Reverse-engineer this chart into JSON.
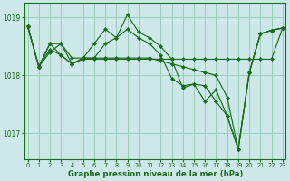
{
  "background_color": "#cce8e8",
  "grid_color": "#99ccbb",
  "line_color": "#1a6b1a",
  "marker_color": "#1a6b1a",
  "ylabel_ticks": [
    1017,
    1018,
    1019
  ],
  "xlabel_label": "Graphe pression niveau de la mer (hPa)",
  "xlabel_ticks": [
    0,
    1,
    2,
    3,
    4,
    5,
    6,
    7,
    8,
    9,
    10,
    11,
    12,
    13,
    14,
    15,
    16,
    17,
    18,
    19,
    20,
    21,
    22,
    23
  ],
  "xlim": [
    -0.3,
    23.3
  ],
  "ylim": [
    1016.55,
    1019.25
  ],
  "series": [
    [
      1018.85,
      1018.15,
      1018.4,
      1018.55,
      1018.2,
      1018.3,
      1018.55,
      1018.8,
      1018.65,
      1019.05,
      1018.75,
      1018.65,
      1018.5,
      1018.28,
      1017.78,
      1017.85,
      1017.82,
      1017.55,
      1017.3,
      1016.72,
      1018.05,
      1018.72,
      1018.78,
      1018.82
    ],
    [
      1018.85,
      1018.15,
      1018.55,
      1018.55,
      1018.3,
      1018.3,
      1018.3,
      1018.55,
      1018.65,
      1018.8,
      1018.65,
      1018.55,
      1018.35,
      1017.95,
      1017.82,
      1017.85,
      1017.55,
      1017.75,
      1017.3,
      1016.72,
      1018.05,
      1018.72,
      1018.78,
      1018.82
    ],
    [
      1018.85,
      1018.15,
      1018.55,
      1018.35,
      1018.2,
      1018.3,
      1018.3,
      1018.3,
      1018.3,
      1018.3,
      1018.3,
      1018.3,
      1018.25,
      1018.2,
      1018.15,
      1018.1,
      1018.05,
      1018.0,
      1017.62,
      1016.72,
      1018.05,
      1018.72,
      1018.78,
      1018.82
    ],
    [
      1018.85,
      1018.15,
      1018.45,
      1018.35,
      1018.2,
      1018.28,
      1018.28,
      1018.28,
      1018.28,
      1018.28,
      1018.28,
      1018.28,
      1018.28,
      1018.28,
      1018.28,
      1018.28,
      1018.28,
      1018.28,
      1018.28,
      1018.28,
      1018.28,
      1018.28,
      1018.28,
      1018.82
    ]
  ]
}
